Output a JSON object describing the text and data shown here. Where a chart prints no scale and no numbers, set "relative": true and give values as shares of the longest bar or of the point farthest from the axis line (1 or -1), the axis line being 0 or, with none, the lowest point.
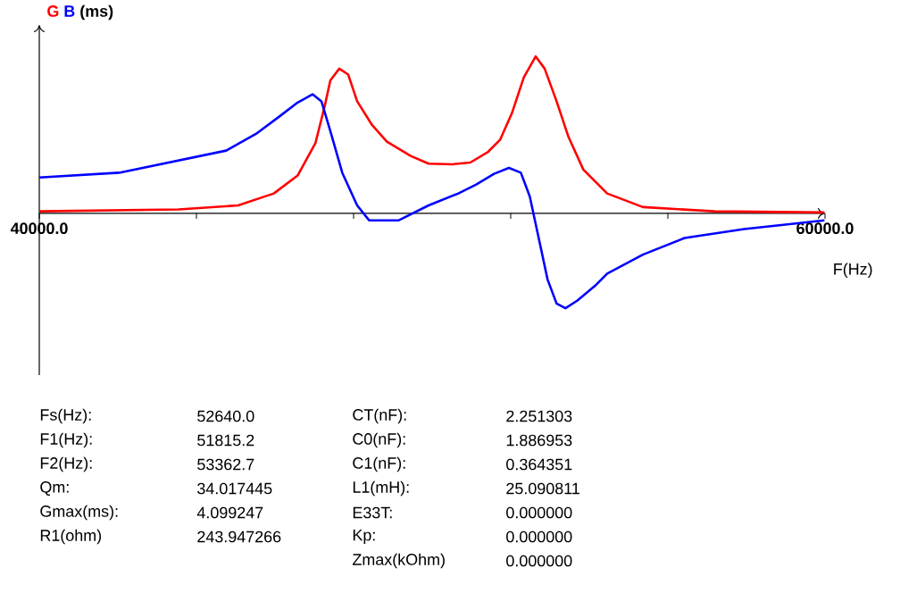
{
  "chart_data": {
    "type": "line",
    "relative": true,
    "ylabel": "(ms)",
    "xlabel": "F(Hz)",
    "marker": "none",
    "line_style": "solid",
    "xlim": [
      40000,
      60000
    ],
    "xticks": [
      {
        "value": 40000,
        "label": "40000.0"
      },
      {
        "value": 44000,
        "label": null
      },
      {
        "value": 48000,
        "label": null
      },
      {
        "value": 52000,
        "label": null
      },
      {
        "value": 56000,
        "label": null
      },
      {
        "value": 60000,
        "label": "60000.0"
      }
    ],
    "series": [
      {
        "name": "G",
        "color": "#ff0000",
        "x": [
          40000,
          43545,
          45061,
          45970,
          46576,
          47030,
          47258,
          47409,
          47636,
          47864,
          48091,
          48470,
          48848,
          49455,
          49909,
          50515,
          50970,
          51424,
          51727,
          52030,
          52333,
          52636,
          52864,
          53167,
          53470,
          53848,
          54455,
          55364,
          57182,
          59985
        ],
        "values": [
          0.013,
          0.025,
          0.051,
          0.127,
          0.241,
          0.449,
          0.676,
          0.847,
          0.922,
          0.884,
          0.714,
          0.563,
          0.457,
          0.366,
          0.317,
          0.313,
          0.324,
          0.392,
          0.468,
          0.638,
          0.866,
          1.0,
          0.922,
          0.714,
          0.487,
          0.279,
          0.127,
          0.04,
          0.013,
          0.006
        ]
      },
      {
        "name": "B",
        "color": "#0000ff",
        "x": [
          40000,
          42030,
          44758,
          45515,
          46121,
          46576,
          46955,
          47182,
          47409,
          47712,
          48091,
          48394,
          49152,
          49909,
          50667,
          51121,
          51576,
          51955,
          52258,
          52485,
          52712,
          52939,
          53167,
          53394,
          53697,
          54152,
          54455,
          55364,
          56424,
          57939,
          59985
        ],
        "values": [
          0.229,
          0.259,
          0.4,
          0.506,
          0.619,
          0.706,
          0.759,
          0.714,
          0.524,
          0.259,
          0.051,
          -0.044,
          -0.044,
          0.051,
          0.127,
          0.184,
          0.252,
          0.29,
          0.259,
          0.108,
          -0.157,
          -0.422,
          -0.574,
          -0.604,
          -0.555,
          -0.46,
          -0.384,
          -0.263,
          -0.157,
          -0.1,
          -0.044
        ]
      }
    ],
    "annotations": [
      "Fs(Hz):",
      "52640.0",
      "F1(Hz):",
      "51815.2",
      "F2(Hz):",
      "53362.7",
      "Qm:",
      "34.017445",
      "Gmax(ms):",
      "4.099247",
      "R1(ohm)",
      "243.947266",
      "CT(nF):",
      "2.251303",
      "C0(nF):",
      "1.886953",
      "C1(nF):",
      "0.364351",
      "L1(mH):",
      "25.090811",
      "E33T:",
      "0.000000",
      "Kp:",
      "0.000000",
      "Zmax(kOhm)",
      "0.000000"
    ]
  }
}
